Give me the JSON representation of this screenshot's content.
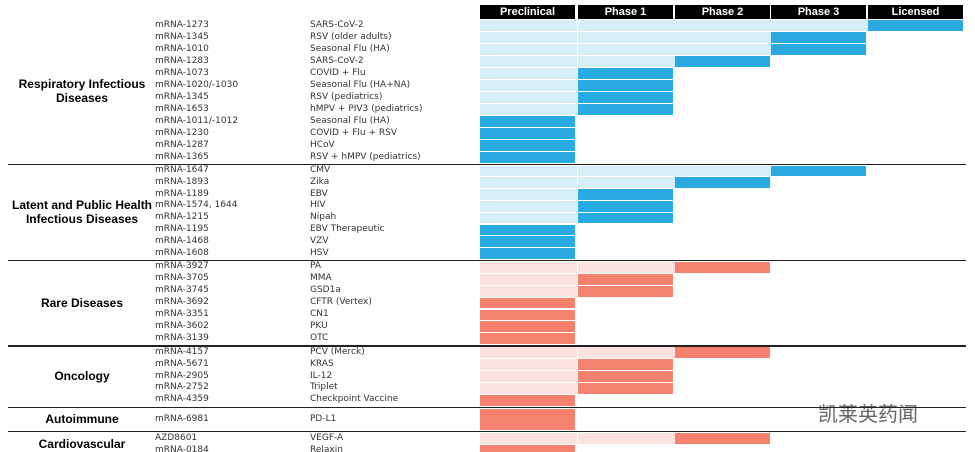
{
  "phases": [
    "Preclinical",
    "Phase 1",
    "Phase 2",
    "Phase 3",
    "Licensed"
  ],
  "groups": [
    {
      "label": "Respiratory Infectious Diseases",
      "color": "#29abe2",
      "light_color": "#d6eef8",
      "rows": [
        {
          "id": "mRNA-1273",
          "name": "SARS-CoV-2",
          "stage": "Licensed"
        },
        {
          "id": "mRNA-1345",
          "name": "RSV (older adults)",
          "stage": "Phase 3"
        },
        {
          "id": "mRNA-1010",
          "name": "Seasonal Flu (HA)",
          "stage": "Phase 3"
        },
        {
          "id": "mRNA-1283",
          "name": "SARS-CoV-2",
          "stage": "Phase 2"
        },
        {
          "id": "mRNA-1073",
          "name": "COVID + Flu",
          "stage": "Phase 1"
        },
        {
          "id": "mRNA-1020/-1030",
          "name": "Seasonal Flu (HA+NA)",
          "stage": "Phase 1"
        },
        {
          "id": "mRNA-1345",
          "name": "RSV (pediatrics)",
          "stage": "Phase 1"
        },
        {
          "id": "mRNA-1653",
          "name": "hMPV + PIV3 (pediatrics)",
          "stage": "Phase 1"
        },
        {
          "id": "mRNA-1011/-1012",
          "name": "Seasonal Flu (HA)",
          "stage": "Preclinical"
        },
        {
          "id": "mRNA-1230",
          "name": "COVID + Flu + RSV",
          "stage": "Preclinical"
        },
        {
          "id": "mRNA-1287",
          "name": "HCoV",
          "stage": "Preclinical"
        },
        {
          "id": "mRNA-1365",
          "name": "RSV + hMPV (pediatrics)",
          "stage": "Preclinical"
        }
      ]
    },
    {
      "label": "Latent and Public Health Infectious Diseases",
      "color": "#29abe2",
      "light_color": "#d6eef8",
      "rows": [
        {
          "id": "mRNA-1647",
          "name": "CMV",
          "stage": "Phase 3"
        },
        {
          "id": "mRNA-1893",
          "name": "Zika",
          "stage": "Phase 2"
        },
        {
          "id": "mRNA-1189",
          "name": "EBV",
          "stage": "Phase 1"
        },
        {
          "id": "mRNA-1574, 1644",
          "name": "HIV",
          "stage": "Phase 1"
        },
        {
          "id": "mRNA-1215",
          "name": "Nipah",
          "stage": "Phase 1"
        },
        {
          "id": "mRNA-1195",
          "name": "EBV Therapeutic",
          "stage": "Preclinical"
        },
        {
          "id": "mRNA-1468",
          "name": "VZV",
          "stage": "Preclinical"
        },
        {
          "id": "mRNA-1608",
          "name": "HSV",
          "stage": "Preclinical"
        }
      ]
    },
    {
      "label": "Rare Diseases",
      "color": "#f4826f",
      "light_color": "#fde3df",
      "rows": [
        {
          "id": "mRNA-3927",
          "name": "PA",
          "stage": "Phase 2"
        },
        {
          "id": "mRNA-3705",
          "name": "MMA",
          "stage": "Phase 1"
        },
        {
          "id": "mRNA-3745",
          "name": "GSD1a",
          "stage": "Phase 1"
        },
        {
          "id": "mRNA-3692",
          "name": "CFTR (Vertex)",
          "stage": "Preclinical"
        },
        {
          "id": "mRNA-3351",
          "name": "CN1",
          "stage": "Preclinical"
        },
        {
          "id": "mRNA-3602",
          "name": "PKU",
          "stage": "Preclinical"
        },
        {
          "id": "mRNA-3139",
          "name": "OTC",
          "stage": "Preclinical"
        }
      ]
    },
    {
      "label": "Oncology",
      "color": "#f4826f",
      "light_color": "#fde3df",
      "rows": [
        {
          "id": "mRNA-4157",
          "name": "PCV (Merck)",
          "stage": "Phase 2"
        },
        {
          "id": "mRNA-5671",
          "name": "KRAS",
          "stage": "Phase 1"
        },
        {
          "id": "mRNA-2905",
          "name": "IL-12",
          "stage": "Phase 1"
        },
        {
          "id": "mRNA-2752",
          "name": "Triplet",
          "stage": "Phase 1"
        },
        {
          "id": "mRNA-4359",
          "name": "Checkpoint Vaccine",
          "stage": "Preclinical"
        }
      ]
    },
    {
      "label": "Autoimmune",
      "color": "#f4826f",
      "light_color": "#fde3df",
      "rows": [
        {
          "id": "mRNA-6981",
          "name": "PD-L1",
          "stage": "Preclinical"
        }
      ]
    },
    {
      "label": "Cardiovascular",
      "color": "#f4826f",
      "light_color": "#fde3df",
      "rows": [
        {
          "id": "AZD8601",
          "name": "VEGF-A",
          "stage": "Phase 2"
        },
        {
          "id": "mRNA-0184",
          "name": "Relaxin",
          "stage": "Preclinical"
        }
      ]
    }
  ],
  "watermark": "凯莱英药闻"
}
